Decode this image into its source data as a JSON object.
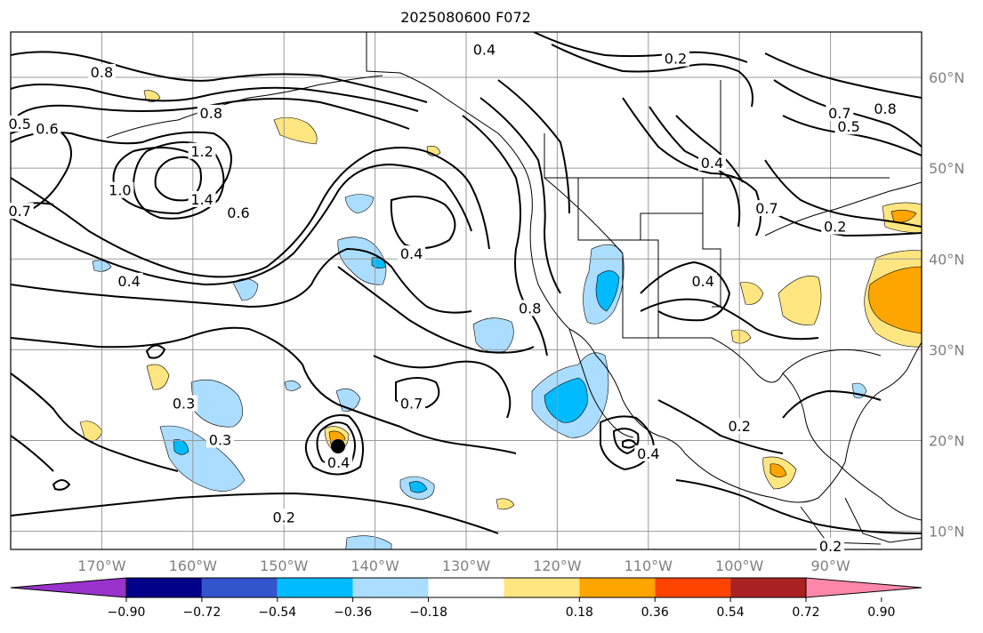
{
  "title": "2025080600 F072",
  "map": {
    "lon_range": [
      -180,
      -80
    ],
    "lat_range": [
      8,
      65
    ],
    "lat_ticks": [
      {
        "value": 10,
        "label": "10°N"
      },
      {
        "value": 20,
        "label": "20°N"
      },
      {
        "value": 30,
        "label": "30°N"
      },
      {
        "value": 40,
        "label": "40°N"
      },
      {
        "value": 50,
        "label": "50°N"
      },
      {
        "value": 60,
        "label": "60°N"
      }
    ],
    "lon_ticks": [
      {
        "value": -170,
        "label": "170°W"
      },
      {
        "value": -160,
        "label": "160°W"
      },
      {
        "value": -150,
        "label": "150°W"
      },
      {
        "value": -140,
        "label": "140°W"
      },
      {
        "value": -130,
        "label": "130°W"
      },
      {
        "value": -120,
        "label": "120°W"
      },
      {
        "value": -110,
        "label": "110°W"
      },
      {
        "value": -100,
        "label": "100°W"
      },
      {
        "value": -90,
        "label": "90°W"
      }
    ],
    "contour_labels": [
      {
        "text": "0.8",
        "lon": -170,
        "lat": 60.5
      },
      {
        "text": "0.5",
        "lon": -179,
        "lat": 54.8
      },
      {
        "text": "0.6",
        "lon": -176,
        "lat": 54.3
      },
      {
        "text": "0.8",
        "lon": -158,
        "lat": 56
      },
      {
        "text": "1.2",
        "lon": -159,
        "lat": 51.8
      },
      {
        "text": "1.0",
        "lon": -168,
        "lat": 47.5
      },
      {
        "text": "0.7",
        "lon": -179,
        "lat": 45.2
      },
      {
        "text": "1.4",
        "lon": -159,
        "lat": 46.5
      },
      {
        "text": "0.6",
        "lon": -155,
        "lat": 45
      },
      {
        "text": "0.4",
        "lon": -167,
        "lat": 37.5
      },
      {
        "text": "0.4",
        "lon": -128,
        "lat": 63
      },
      {
        "text": "0.2",
        "lon": -107,
        "lat": 62
      },
      {
        "text": "0.4",
        "lon": -136,
        "lat": 40.5
      },
      {
        "text": "0.8",
        "lon": -123,
        "lat": 34.5
      },
      {
        "text": "0.7",
        "lon": -136,
        "lat": 24
      },
      {
        "text": "0.3",
        "lon": -161,
        "lat": 24
      },
      {
        "text": "0.3",
        "lon": -157,
        "lat": 20
      },
      {
        "text": "0.4",
        "lon": -144,
        "lat": 17.5
      },
      {
        "text": "0.2",
        "lon": -150,
        "lat": 11.5
      },
      {
        "text": "0.4",
        "lon": -103,
        "lat": 50.5
      },
      {
        "text": "0.7",
        "lon": -89,
        "lat": 56
      },
      {
        "text": "0.5",
        "lon": -88,
        "lat": 54.5
      },
      {
        "text": "0.8",
        "lon": -84,
        "lat": 56.5
      },
      {
        "text": "0.7",
        "lon": -97,
        "lat": 45.5
      },
      {
        "text": "0.2",
        "lon": -89.5,
        "lat": 43.5
      },
      {
        "text": "0.4",
        "lon": -104,
        "lat": 37.5
      },
      {
        "text": "0.2",
        "lon": -100,
        "lat": 21.5
      },
      {
        "text": "0.4",
        "lon": -110,
        "lat": 18.5
      },
      {
        "text": "0.2",
        "lon": -90,
        "lat": 8.3
      }
    ]
  },
  "colorbar": {
    "colors": [
      "#9933cc",
      "#000088",
      "#3355cc",
      "#00bbff",
      "#aaddff",
      "#ffffff",
      "#ffe680",
      "#ffa500",
      "#ff4400",
      "#aa2222",
      "#ff88aa"
    ],
    "ticks": [
      "−0.90",
      "−0.72",
      "−0.54",
      "−0.36",
      "−0.18",
      "0.18",
      "0.36",
      "0.54",
      "0.72",
      "0.90"
    ]
  }
}
